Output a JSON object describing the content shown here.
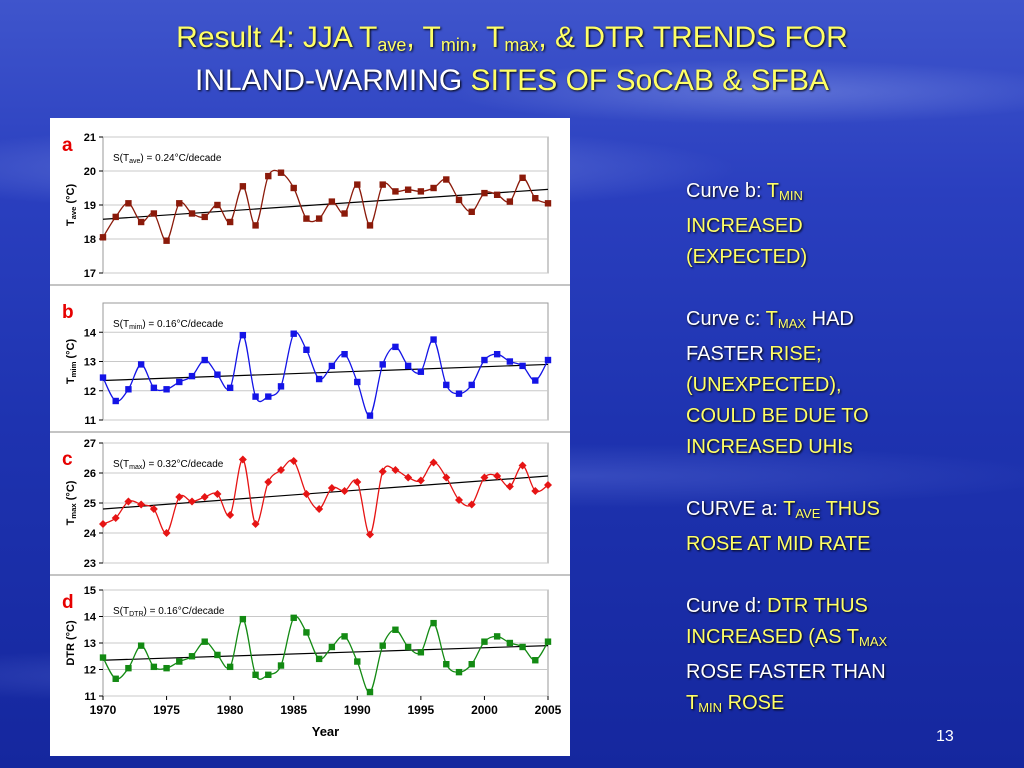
{
  "title": {
    "line1_prefix": "Result 4: JJA T",
    "sub_ave": "ave",
    "sep1": ", T",
    "sub_min": "min",
    "sep2": ", T",
    "sub_max": "max",
    "line1_suffix": ", & DTR TRENDS FOR",
    "line2_white": "INLAND-WARMING",
    "line2_yellow": " SITES OF SoCAB & SFBA"
  },
  "notes": {
    "b_label": "Curve b: ",
    "b_t": "T",
    "b_sub": "MIN",
    "b_line2": "INCREASED",
    "b_line3": "(EXPECTED)",
    "c_label": "Curve c: ",
    "c_t": "T",
    "c_sub": "MAX",
    "c_had": " HAD",
    "c_faster": "FASTER ",
    "c_rise": "RISE;",
    "c_line3": "(UNEXPECTED),",
    "c_line4": "COULD BE DUE TO",
    "c_line5": "INCREASED UHIs",
    "a_label": "CURVE a: ",
    "a_t": "T",
    "a_sub": "AVE",
    "a_thus": " THUS",
    "a_line2": "ROSE AT MID RATE",
    "d_label": "Curve d: ",
    "d_text": "DTR THUS",
    "d_line2a": "INCREASED (AS T",
    "d_line2_sub": "MAX",
    "d_line3": "ROSE FASTER THAN",
    "d_line4_t": "T",
    "d_line4_sub": "MIN",
    "d_line4_rest": " ROSE"
  },
  "slide_number": "13",
  "chart_data": [
    {
      "type": "line",
      "panel_label": "a",
      "ylabel": "T_ave (°C)",
      "annotation": "S(T_ave) = 0.24°C/decade",
      "ylim": [
        17,
        21
      ],
      "yticks": [
        17,
        18,
        19,
        20,
        21
      ],
      "color": "#8b1a0a",
      "marker": "square",
      "x": [
        1970,
        1971,
        1972,
        1973,
        1974,
        1975,
        1976,
        1977,
        1978,
        1979,
        1980,
        1981,
        1982,
        1983,
        1984,
        1985,
        1986,
        1987,
        1988,
        1989,
        1990,
        1991,
        1992,
        1993,
        1994,
        1995,
        1996,
        1997,
        1998,
        1999,
        2000,
        2001,
        2002,
        2003,
        2004,
        2005
      ],
      "values": [
        18.05,
        18.65,
        19.05,
        18.5,
        18.75,
        17.95,
        19.05,
        18.75,
        18.65,
        19.0,
        18.5,
        19.55,
        18.4,
        19.85,
        19.95,
        19.5,
        18.6,
        18.6,
        19.1,
        18.75,
        19.6,
        18.4,
        19.6,
        19.4,
        19.45,
        19.4,
        19.5,
        19.75,
        19.15,
        18.8,
        19.35,
        19.3,
        19.1,
        19.8,
        19.2,
        19.05
      ],
      "trend": [
        18.58,
        19.46
      ]
    },
    {
      "type": "line",
      "panel_label": "b",
      "ylabel": "T_mim (°C)",
      "annotation": "S(T_mim) = 0.16°C/decade",
      "ylim": [
        11,
        15
      ],
      "yticks": [
        11,
        12,
        13,
        14
      ],
      "color": "#1414e6",
      "marker": "square",
      "x": [
        1970,
        1971,
        1972,
        1973,
        1974,
        1975,
        1976,
        1977,
        1978,
        1979,
        1980,
        1981,
        1982,
        1983,
        1984,
        1985,
        1986,
        1987,
        1988,
        1989,
        1990,
        1991,
        1992,
        1993,
        1994,
        1995,
        1996,
        1997,
        1998,
        1999,
        2000,
        2001,
        2002,
        2003,
        2004,
        2005
      ],
      "values": [
        12.45,
        11.65,
        12.05,
        12.9,
        12.1,
        12.05,
        12.3,
        12.5,
        13.05,
        12.55,
        12.1,
        13.9,
        11.8,
        11.8,
        12.15,
        13.95,
        13.4,
        12.4,
        12.85,
        13.25,
        12.3,
        11.15,
        12.9,
        13.5,
        12.85,
        12.65,
        13.75,
        12.2,
        11.9,
        12.2,
        13.05,
        13.25,
        13.0,
        12.85,
        12.35,
        13.05
      ],
      "trend": [
        12.35,
        12.9
      ]
    },
    {
      "type": "line",
      "panel_label": "c",
      "ylabel": "T_max (°C)",
      "annotation": "S(T_max) = 0.32°C/decade",
      "ylim": [
        23,
        27
      ],
      "yticks": [
        23,
        24,
        25,
        26,
        27
      ],
      "color": "#e61414",
      "marker": "diamond",
      "x": [
        1970,
        1971,
        1972,
        1973,
        1974,
        1975,
        1976,
        1977,
        1978,
        1979,
        1980,
        1981,
        1982,
        1983,
        1984,
        1985,
        1986,
        1987,
        1988,
        1989,
        1990,
        1991,
        1992,
        1993,
        1994,
        1995,
        1996,
        1997,
        1998,
        1999,
        2000,
        2001,
        2002,
        2003,
        2004,
        2005
      ],
      "values": [
        24.3,
        24.5,
        25.05,
        24.95,
        24.8,
        24.0,
        25.2,
        25.05,
        25.2,
        25.3,
        24.6,
        26.45,
        24.3,
        25.7,
        26.1,
        26.4,
        25.3,
        24.8,
        25.5,
        25.4,
        25.7,
        23.95,
        26.05,
        26.1,
        25.85,
        25.75,
        26.35,
        25.85,
        25.1,
        24.95,
        25.85,
        25.9,
        25.55,
        26.25,
        25.4,
        25.6
      ],
      "trend": [
        24.8,
        25.9
      ]
    },
    {
      "type": "line",
      "panel_label": "d",
      "ylabel": "DTR (°C)",
      "annotation": "S(T_DTR) = 0.16°C/decade",
      "xlabel": "Year",
      "ylim": [
        11,
        15
      ],
      "yticks": [
        11,
        12,
        13,
        14,
        15
      ],
      "xticks": [
        1970,
        1975,
        1980,
        1985,
        1990,
        1995,
        2000,
        2005
      ],
      "color": "#138a13",
      "marker": "square",
      "x": [
        1970,
        1971,
        1972,
        1973,
        1974,
        1975,
        1976,
        1977,
        1978,
        1979,
        1980,
        1981,
        1982,
        1983,
        1984,
        1985,
        1986,
        1987,
        1988,
        1989,
        1990,
        1991,
        1992,
        1993,
        1994,
        1995,
        1996,
        1997,
        1998,
        1999,
        2000,
        2001,
        2002,
        2003,
        2004,
        2005
      ],
      "values": [
        12.45,
        11.65,
        12.05,
        12.9,
        12.1,
        12.05,
        12.3,
        12.5,
        13.05,
        12.55,
        12.1,
        13.9,
        11.8,
        11.8,
        12.15,
        13.95,
        13.4,
        12.4,
        12.85,
        13.25,
        12.3,
        11.15,
        12.9,
        13.5,
        12.85,
        12.65,
        13.75,
        12.2,
        11.9,
        12.2,
        13.05,
        13.25,
        13.0,
        12.85,
        12.35,
        13.05
      ],
      "trend": [
        12.35,
        12.9
      ]
    }
  ]
}
